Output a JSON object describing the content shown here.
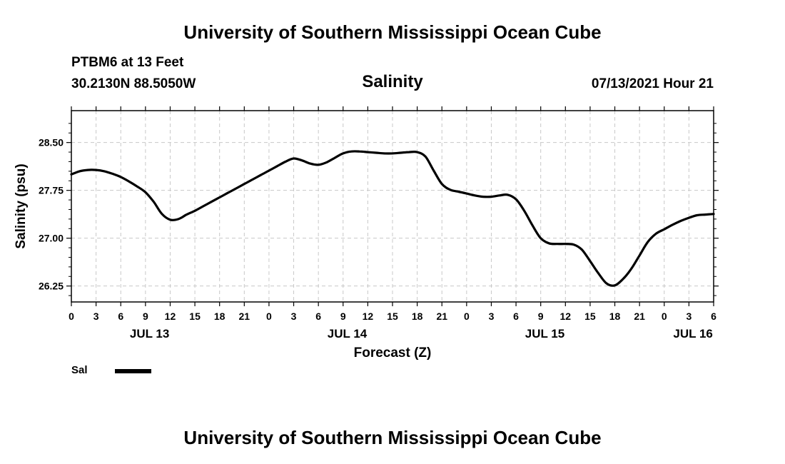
{
  "header": {
    "title": "University of Southern Mississippi Ocean Cube",
    "station": "PTBM6 at 13 Feet",
    "coords": "30.2130N  88.5050W",
    "datetime": "07/13/2021 Hour 21"
  },
  "footer": {
    "title": "University of Southern Mississippi Ocean Cube"
  },
  "legend": {
    "label": "Sal",
    "color": "#000000"
  },
  "chart_data": {
    "type": "line",
    "title": "Salinity",
    "xlabel": "Forecast (Z)",
    "ylabel": "Salinity (psu)",
    "xlim": [
      0,
      78
    ],
    "ylim": [
      26.0,
      29.0
    ],
    "grid": true,
    "x_ticks": [
      0,
      3,
      6,
      9,
      12,
      15,
      18,
      21,
      24,
      27,
      30,
      33,
      36,
      39,
      42,
      45,
      48,
      51,
      54,
      57,
      60,
      63,
      66,
      69,
      72,
      75,
      78
    ],
    "x_tick_labels": [
      "0",
      "3",
      "6",
      "9",
      "12",
      "15",
      "18",
      "21",
      "0",
      "3",
      "6",
      "9",
      "12",
      "15",
      "18",
      "21",
      "0",
      "3",
      "6",
      "9",
      "12",
      "15",
      "18",
      "21",
      "0",
      "3",
      "6"
    ],
    "y_ticks": [
      26.25,
      27.0,
      27.75,
      28.5
    ],
    "y_tick_labels": [
      "26.25",
      "27.00",
      "27.75",
      "28.50"
    ],
    "y_minor_ticks": [
      26.1,
      26.4,
      26.55,
      26.7,
      26.85,
      27.15,
      27.3,
      27.45,
      27.6,
      27.9,
      28.05,
      28.2,
      28.35,
      28.65,
      28.8
    ],
    "date_labels": [
      {
        "x": 9.5,
        "label": "JUL 13"
      },
      {
        "x": 33.5,
        "label": "JUL 14"
      },
      {
        "x": 57.5,
        "label": "JUL 15"
      },
      {
        "x": 75.5,
        "label": "JUL 16"
      }
    ],
    "series": [
      {
        "name": "Sal",
        "x": [
          0,
          1,
          2,
          3,
          4,
          5,
          6,
          7,
          8,
          9,
          10,
          11,
          12,
          13,
          14,
          15,
          16,
          17,
          18,
          19,
          20,
          21,
          22,
          23,
          24,
          25,
          26,
          27,
          28,
          29,
          30,
          31,
          32,
          33,
          34,
          35,
          36,
          37,
          38,
          39,
          40,
          41,
          42,
          43,
          44,
          45,
          46,
          47,
          48,
          49,
          50,
          51,
          52,
          53,
          54,
          55,
          56,
          57,
          58,
          59,
          60,
          61,
          62,
          63,
          64,
          65,
          66,
          67,
          68,
          69,
          70,
          71,
          72,
          73,
          74,
          75,
          76,
          77,
          78
        ],
        "values": [
          28.0,
          28.05,
          28.07,
          28.07,
          28.05,
          28.01,
          27.96,
          27.89,
          27.81,
          27.72,
          27.57,
          27.38,
          27.29,
          27.3,
          27.37,
          27.43,
          27.5,
          27.57,
          27.64,
          27.71,
          27.78,
          27.85,
          27.92,
          27.99,
          28.06,
          28.13,
          28.2,
          28.25,
          28.22,
          28.17,
          28.15,
          28.19,
          28.26,
          28.33,
          28.36,
          28.36,
          28.35,
          28.34,
          28.33,
          28.33,
          28.34,
          28.35,
          28.35,
          28.28,
          28.06,
          27.85,
          27.76,
          27.73,
          27.7,
          27.67,
          27.65,
          27.65,
          27.67,
          27.68,
          27.61,
          27.43,
          27.2,
          27.0,
          26.92,
          26.91,
          26.91,
          26.9,
          26.82,
          26.64,
          26.45,
          26.29,
          26.26,
          26.36,
          26.52,
          26.73,
          26.94,
          27.07,
          27.14,
          27.21,
          27.27,
          27.32,
          27.36,
          27.37,
          27.38
        ]
      }
    ]
  }
}
